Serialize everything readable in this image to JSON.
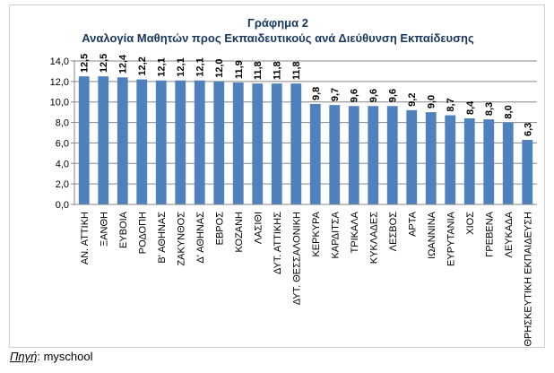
{
  "chart_data": {
    "type": "bar",
    "title": "Γράφημα 2",
    "subtitle": "Αναλογία Μαθητών προς Εκπαιδευτικούς ανά Διεύθυνση Εκπαίδευσης",
    "categories": [
      "ΑΝ. ΑΤΤΙΚΗ",
      "ΞΑΝΘΗ",
      "ΕΥΒΟΙΑ",
      "ΡΟΔΟΠΗ",
      "Β' ΑΘΗΝΑΣ",
      "ΖΑΚΥΝΘΟΣ",
      "Δ' ΑΘΗΝΑΣ",
      "ΕΒΡΟΣ",
      "ΚΟΖΑΝΗ",
      "ΛΑΣΙΘΙ",
      "ΔΥΤ. ΑΤΤΙΚΗΣ",
      "ΔΥΤ. ΘΕΣΣΑΛΟΝΙΚΗ",
      "ΚΕΡΚΥΡΑ",
      "ΚΑΡΔΙΤΣΑ",
      "ΤΡΙΚΑΛΑ",
      "ΚΥΚΛΑΔΕΣ",
      "ΛΕΣΒΟΣ",
      "ΑΡΤΑ",
      "ΙΩΑΝΝΙΝΑ",
      "ΕΥΡΥΤΑΝΙΑ",
      "ΧΙΟΣ",
      "ΓΡΕΒΕΝΑ",
      "ΛΕΥΚΑΔΑ",
      "ΘΡΗΣΚΕΥΤΙΚΗ ΕΚΠΑΙΔΕΥΣΗ"
    ],
    "values": [
      12.5,
      12.5,
      12.4,
      12.2,
      12.1,
      12.1,
      12.1,
      12.0,
      11.9,
      11.8,
      11.8,
      11.8,
      9.8,
      9.7,
      9.6,
      9.6,
      9.6,
      9.2,
      9.0,
      8.7,
      8.4,
      8.3,
      8.0,
      6.3
    ],
    "value_labels": [
      "12,5",
      "12,5",
      "12,4",
      "12,2",
      "12,1",
      "12,1",
      "12,1",
      "12,0",
      "11,9",
      "11,8",
      "11,8",
      "11,8",
      "9,8",
      "9,7",
      "9,6",
      "9,6",
      "9,6",
      "9,2",
      "9,0",
      "8,7",
      "8,4",
      "8,3",
      "8,0",
      "6,3"
    ],
    "yticks": [
      "0,0",
      "2,0",
      "4,0",
      "6,0",
      "8,0",
      "10,0",
      "12,0",
      "14,0"
    ],
    "ylim": [
      0,
      14
    ],
    "ystep": 2,
    "xlabel": "",
    "ylabel": "",
    "grid": true,
    "bar_color": "#4f81bd",
    "grid_color": "#868686",
    "title_color": "#17375e"
  },
  "source": {
    "label": "Πηγή",
    "separator": ": ",
    "value": "myschool"
  }
}
